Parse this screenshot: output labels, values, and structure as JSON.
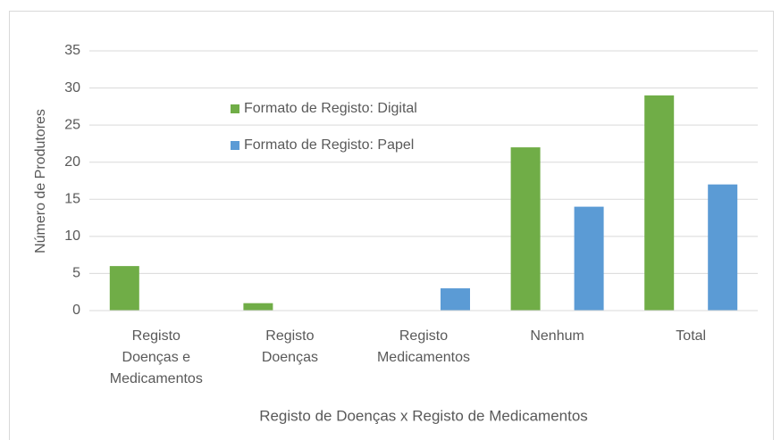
{
  "chart_data": {
    "type": "bar",
    "x_label": "Registo de Doenças x Registo de Medicamentos",
    "y_label": "Número de Produtores",
    "categories": [
      "Registo Doenças e Medicamentos",
      "Registo Doenças",
      "Registo Medicamentos",
      "Nenhum",
      "Total"
    ],
    "series": [
      {
        "name": "Formato de Registo: Digital",
        "color": "#70ad47",
        "values": [
          6,
          1,
          0,
          22,
          29
        ]
      },
      {
        "name": "Formato de Registo: Papel",
        "color": "#5b9bd5",
        "values": [
          0,
          0,
          3,
          14,
          17
        ]
      }
    ],
    "ylim": [
      0,
      35
    ],
    "yticks": [
      0,
      5,
      10,
      15,
      20,
      25,
      30,
      35
    ],
    "grid": true
  }
}
